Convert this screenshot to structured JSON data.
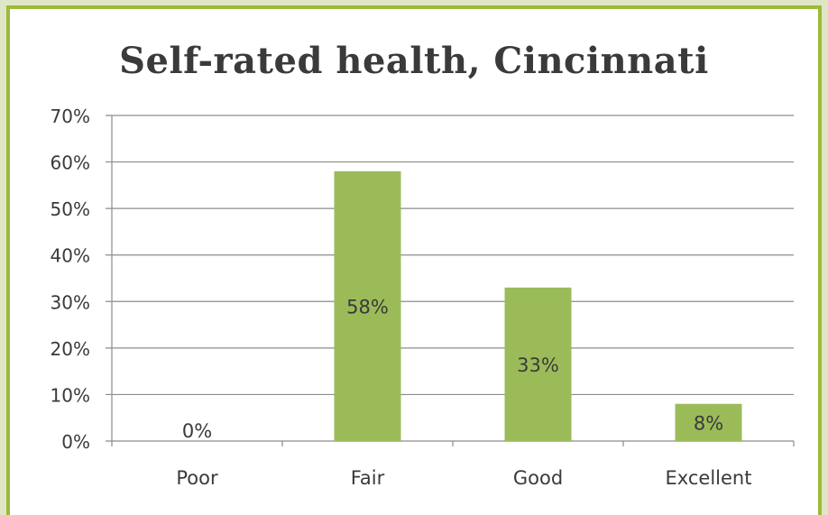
{
  "chart_data": {
    "type": "bar",
    "title": "Self-rated health, Cincinnati",
    "categories": [
      "Poor",
      "Fair",
      "Good",
      "Excellent"
    ],
    "values": [
      0,
      58,
      33,
      8
    ],
    "data_labels": [
      "0%",
      "58%",
      "33%",
      "8%"
    ],
    "ylim": [
      0,
      70
    ],
    "yticks": [
      0,
      10,
      20,
      30,
      40,
      50,
      60,
      70
    ],
    "ytick_labels": [
      "0%",
      "10%",
      "20%",
      "30%",
      "40%",
      "50%",
      "60%",
      "70%"
    ],
    "grid": true,
    "legend": "none",
    "colors": {
      "bar": "#9bbb59",
      "gridline": "#8c8c8c",
      "frame": "#9bbb3a"
    }
  }
}
